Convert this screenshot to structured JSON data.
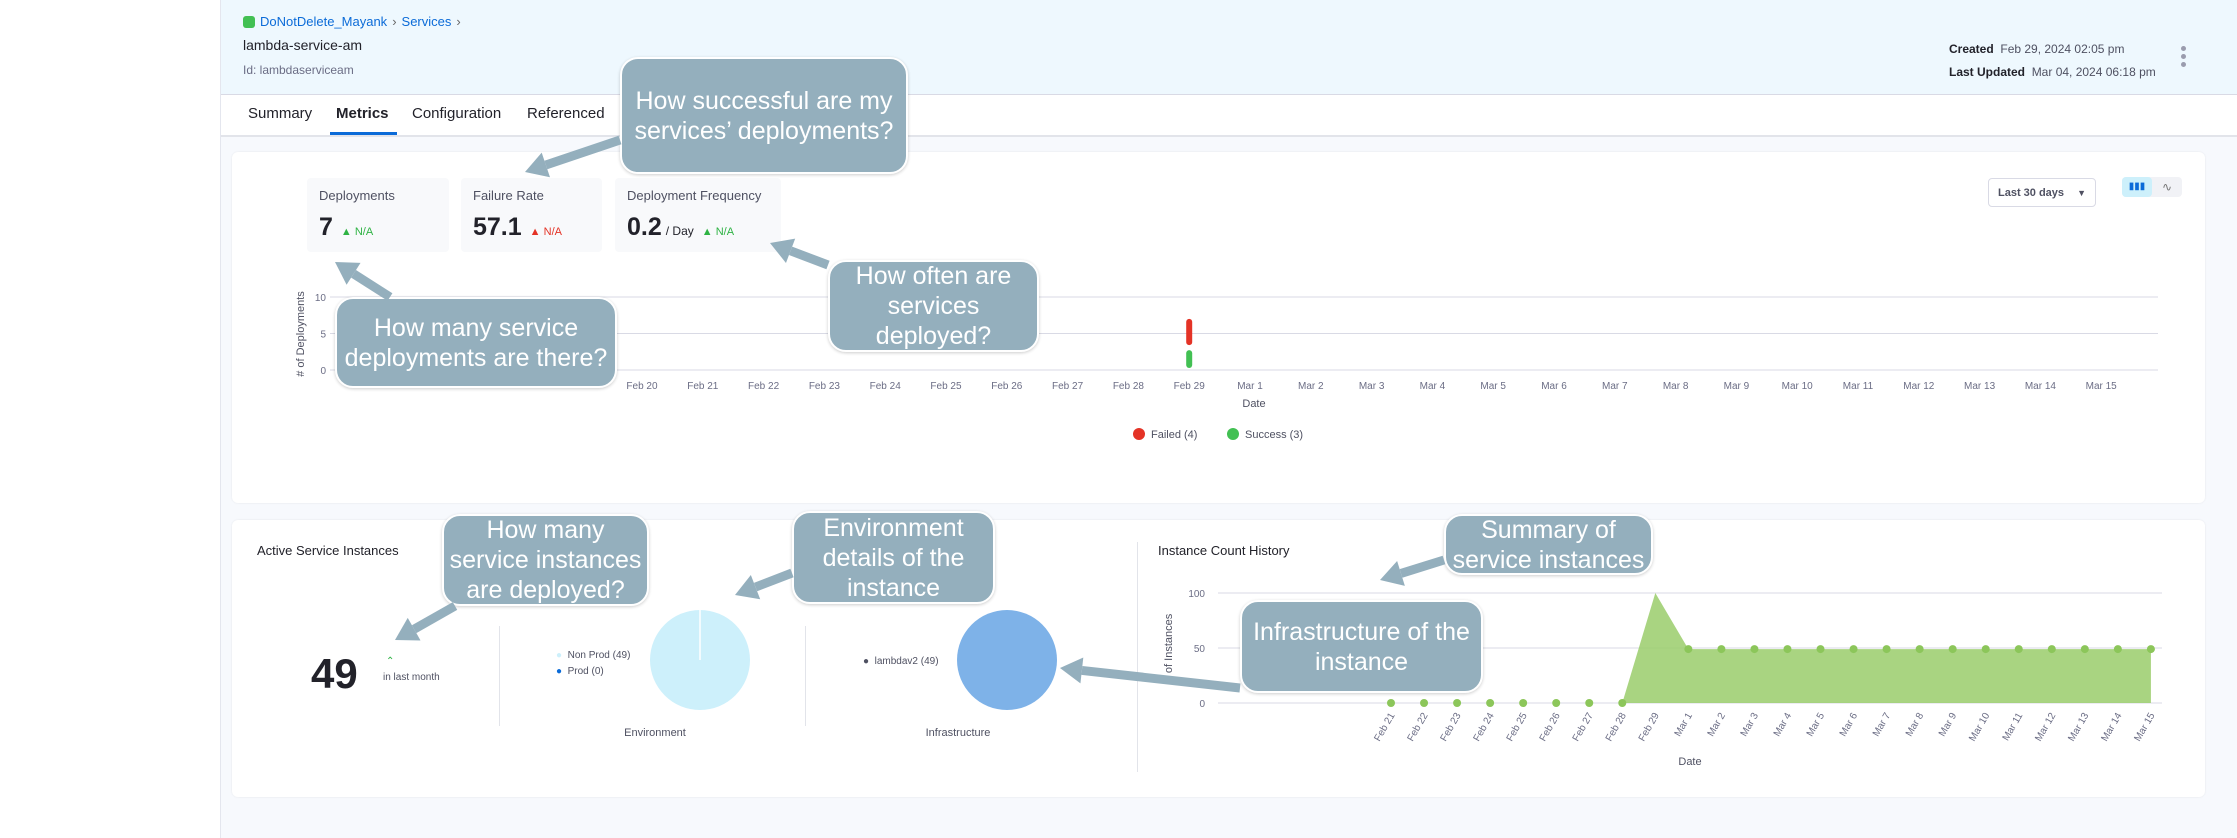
{
  "header": {
    "breadcrumb": [
      "DoNotDelete_Mayank",
      "Services"
    ],
    "title": "lambda-service-am",
    "id": "Id: lambdaserviceam",
    "created_label": "Created",
    "created": "Feb 29, 2024 02:05 pm",
    "updated_label": "Last Updated",
    "updated": "Mar 04, 2024 06:18 pm"
  },
  "tabs": [
    "Summary",
    "Metrics",
    "Configuration",
    "Referenced"
  ],
  "active_tab": "Metrics",
  "metrics": [
    {
      "label": "Deployments",
      "value": "7",
      "unit": "",
      "change": "N/A",
      "trend_color": "#2fb344"
    },
    {
      "label": "Failure Rate",
      "value": "57.1",
      "unit": "",
      "change": "N/A",
      "trend_color": "#e43326"
    },
    {
      "label": "Deployment Frequency",
      "value": "0.2",
      "unit": "/ Day",
      "change": "N/A",
      "trend_color": "#2fb344"
    }
  ],
  "range_select": "Last 30 days",
  "colors": {
    "failed": "#e43326",
    "success": "#42c053",
    "area": "#9acd6b",
    "env_pie": "#cdf0fb",
    "infra_pie": "#7eb2e8",
    "callout": "#94afbd"
  },
  "chart_data": [
    {
      "type": "bar",
      "stacked": true,
      "ylabel": "# of Deployments",
      "xlabel": "Date",
      "ylim": [
        0,
        10
      ],
      "yticks": [
        0,
        5,
        10
      ],
      "categories": [
        "Feb 20",
        "Feb 21",
        "Feb 22",
        "Feb 23",
        "Feb 24",
        "Feb 25",
        "Feb 26",
        "Feb 27",
        "Feb 28",
        "Feb 29",
        "Mar 1",
        "Mar 2",
        "Mar 3",
        "Mar 4",
        "Mar 5",
        "Mar 6",
        "Mar 7",
        "Mar 8",
        "Mar 9",
        "Mar 10",
        "Mar 11",
        "Mar 12",
        "Mar 13",
        "Mar 14",
        "Mar 15"
      ],
      "series": [
        {
          "name": "Failed (4)",
          "values": [
            0,
            0,
            0,
            0,
            0,
            0,
            0,
            0,
            0,
            4,
            0,
            0,
            0,
            0,
            0,
            0,
            0,
            0,
            0,
            0,
            0,
            0,
            0,
            0,
            0
          ]
        },
        {
          "name": "Success (3)",
          "values": [
            0,
            0,
            0,
            0,
            0,
            0,
            0,
            0,
            0,
            3,
            0,
            0,
            0,
            0,
            0,
            0,
            0,
            0,
            0,
            0,
            0,
            0,
            0,
            0,
            0
          ]
        }
      ],
      "legend": "bottom",
      "grid": true
    },
    {
      "type": "area",
      "title": "Instance Count History",
      "ylabel": "# of Instances",
      "xlabel": "Date",
      "ylim": [
        0,
        100
      ],
      "yticks": [
        0,
        50,
        100
      ],
      "categories": [
        "Feb 21",
        "Feb 22",
        "Feb 23",
        "Feb 24",
        "Feb 25",
        "Feb 26",
        "Feb 27",
        "Feb 28",
        "Feb 29",
        "Mar 1",
        "Mar 2",
        "Mar 3",
        "Mar 4",
        "Mar 5",
        "Mar 6",
        "Mar 7",
        "Mar 8",
        "Mar 9",
        "Mar 10",
        "Mar 11",
        "Mar 12",
        "Mar 13",
        "Mar 14",
        "Mar 15"
      ],
      "values": [
        0,
        0,
        0,
        0,
        0,
        0,
        0,
        0,
        100,
        49,
        49,
        49,
        49,
        49,
        49,
        49,
        49,
        49,
        49,
        49,
        49,
        49,
        49,
        49
      ],
      "grid": true
    },
    {
      "type": "pie",
      "title": "Environment",
      "slices": [
        {
          "label": "Non Prod (49)",
          "value": 49,
          "color": "#cdf0fb"
        },
        {
          "label": "Prod (0)",
          "value": 0,
          "color": "#0b6bd8"
        }
      ]
    },
    {
      "type": "pie",
      "title": "Infrastructure",
      "slices": [
        {
          "label": "lambdav2 (49)",
          "value": 49,
          "color": "#7eb2e8"
        }
      ]
    }
  ],
  "instances": {
    "title": "Active Service Instances",
    "count": "49",
    "caption": "in last month"
  },
  "callouts": [
    "How successful are my services’ deployments?",
    "How many service deployments are there?",
    "How often are services deployed?",
    "How many service instances are deployed?",
    "Environment details of the instance",
    "Summary of service instances",
    "Infrastructure of the instance"
  ]
}
